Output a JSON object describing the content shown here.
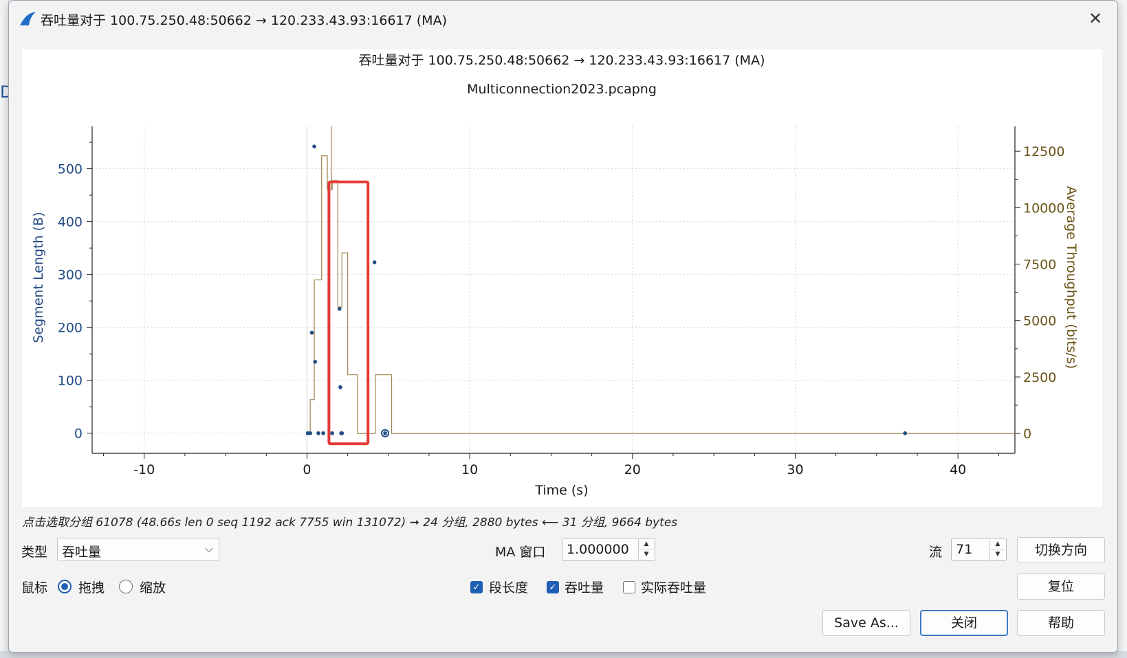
{
  "window": {
    "title": "吞吐量对于 100.75.250.48:50662 → 120.233.43.93:16617 (MA)",
    "close_glyph": "✕"
  },
  "plot": {
    "title": "吞吐量对于 100.75.250.48:50662 → 120.233.43.93:16617 (MA)",
    "subtitle": "Multiconnection2023.pcapng"
  },
  "chart_data": {
    "type": "scatter",
    "title": "吞吐量对于 100.75.250.48:50662 → 120.233.43.93:16617 (MA)",
    "subtitle": "Multiconnection2023.pcapng",
    "xlabel": "Time (s)",
    "ylabel": "Segment Length (B)",
    "y2label": "Average Throughput (bits/s)",
    "xlim": [
      -13.2,
      43.5
    ],
    "ylim": [
      -38,
      580
    ],
    "y2lim": [
      -880,
      13600
    ],
    "x_ticks": [
      -10,
      0,
      10,
      20,
      30,
      40
    ],
    "y_ticks": [
      0,
      100,
      200,
      300,
      400,
      500
    ],
    "y2_ticks": [
      0,
      2500,
      5000,
      7500,
      10000,
      12500
    ],
    "grid": true,
    "colors": {
      "segment": "#224b84",
      "throughput": "#a58b5a",
      "highlight": "#e53935"
    },
    "series": [
      {
        "name": "段长度",
        "axis": "left",
        "points": [
          [
            0.05,
            0
          ],
          [
            0.2,
            0
          ],
          [
            0.3,
            190
          ],
          [
            0.45,
            542
          ],
          [
            0.5,
            135
          ],
          [
            0.7,
            0
          ],
          [
            1.0,
            0
          ],
          [
            1.55,
            0
          ],
          [
            2.0,
            235
          ],
          [
            2.05,
            87
          ],
          [
            2.1,
            0
          ],
          [
            2.15,
            0
          ],
          [
            4.15,
            323
          ],
          [
            4.8,
            0
          ],
          [
            36.75,
            0
          ]
        ]
      },
      {
        "name": "吞吐量",
        "axis": "right",
        "steps": [
          [
            0.0,
            0
          ],
          [
            0.2,
            1500
          ],
          [
            0.45,
            6800
          ],
          [
            0.9,
            12300
          ],
          [
            1.25,
            10800
          ],
          [
            1.55,
            11200
          ],
          [
            1.9,
            5600
          ],
          [
            2.15,
            8000
          ],
          [
            2.5,
            2600
          ],
          [
            3.1,
            0
          ],
          [
            4.2,
            2600
          ],
          [
            5.2,
            0
          ],
          [
            43.5,
            0
          ]
        ]
      }
    ],
    "annotations": [
      {
        "shape": "rectangle",
        "x_range": [
          1.35,
          3.75
        ],
        "y_range": [
          -20,
          475
        ]
      }
    ]
  },
  "status_text": "点击选取分组 61078 (48.66s len 0 seq 1192 ack 7755 win 131072) ➞ 24 分组, 2880 bytes ⟵ 31 分组, 9664 bytes",
  "controls": {
    "type_label": "类型",
    "type_value": "吞吐量",
    "ma_label": "MA 窗口",
    "ma_value": "1.000000",
    "stream_label": "流",
    "stream_value": "71",
    "switch_direction": "切换方向",
    "mouse_label": "鼠标",
    "drag_label": "拖拽",
    "zoom_label": "缩放",
    "seg_len_label": "段长度",
    "throughput_label": "吞吐量",
    "goodput_label": "实际吞吐量",
    "reset": "复位",
    "save_as": "Save As...",
    "close": "关闭",
    "help": "帮助"
  }
}
